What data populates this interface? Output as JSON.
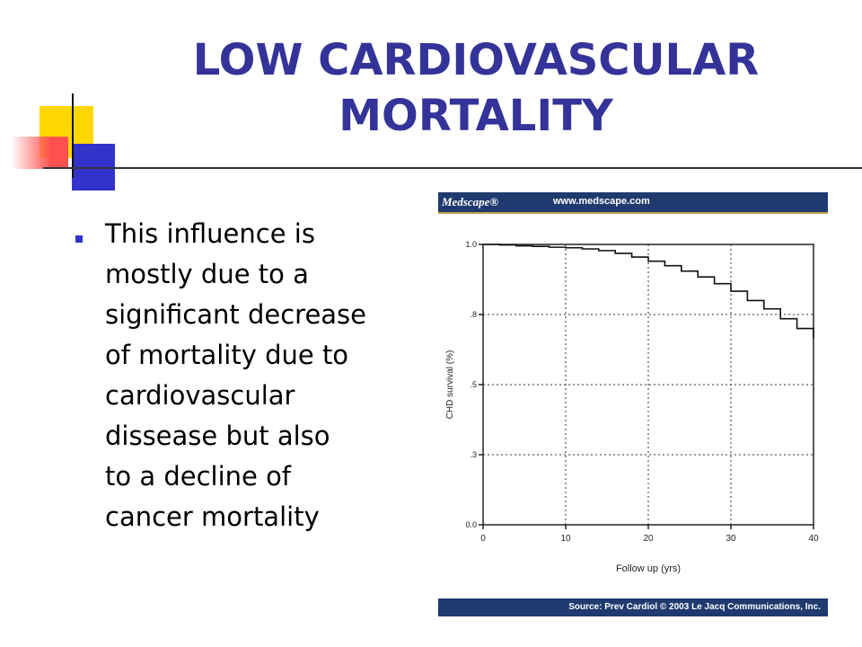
{
  "slide": {
    "title_lines": [
      "LOW  CARDIOVASCULAR",
      "MORTALITY"
    ],
    "bullet_lines": [
      "This  influence  is",
      "mostly  due  to  a",
      "significant  decrease",
      "of  mortality  due  to",
      "cardiovascular",
      "dissease  but  also",
      "to  a  decline  of",
      "cancer  mortality"
    ],
    "colors": {
      "title": "#333399",
      "accent_blue": "#3333cc",
      "accent_yellow": "#ffd700",
      "accent_red": "#ff5050"
    }
  },
  "chart_panel": {
    "brand": "Medscape®",
    "url": "www.medscape.com",
    "source": "Source: Prev Cardiol © 2003 Le Jacq Communications, Inc.",
    "header_color": "#1f3a6e"
  },
  "chart_data": {
    "type": "line",
    "xlabel": "Follow up (yrs)",
    "ylabel": "CHD survival (%)",
    "xlim": [
      0,
      40
    ],
    "ylim": [
      0.0,
      1.0
    ],
    "x_ticks": [
      0,
      10,
      20,
      30,
      40
    ],
    "x_tick_labels": [
      "0",
      "10",
      "20",
      "30",
      "40"
    ],
    "y_ticks": [
      0.0,
      0.25,
      0.5,
      0.75,
      1.0
    ],
    "y_tick_labels": [
      "0.0",
      ".3",
      ".5",
      ".8",
      "1.0"
    ],
    "grid": true,
    "series": [
      {
        "x": [
          0,
          2,
          4,
          6,
          8,
          10,
          12,
          14,
          16,
          18,
          20,
          22,
          24,
          26,
          28,
          30,
          32,
          34,
          36,
          38,
          40
        ],
        "y": [
          1.0,
          0.998,
          0.995,
          0.993,
          0.99,
          0.988,
          0.984,
          0.978,
          0.968,
          0.955,
          0.94,
          0.924,
          0.905,
          0.884,
          0.86,
          0.833,
          0.8,
          0.77,
          0.735,
          0.7,
          0.665
        ]
      }
    ]
  }
}
